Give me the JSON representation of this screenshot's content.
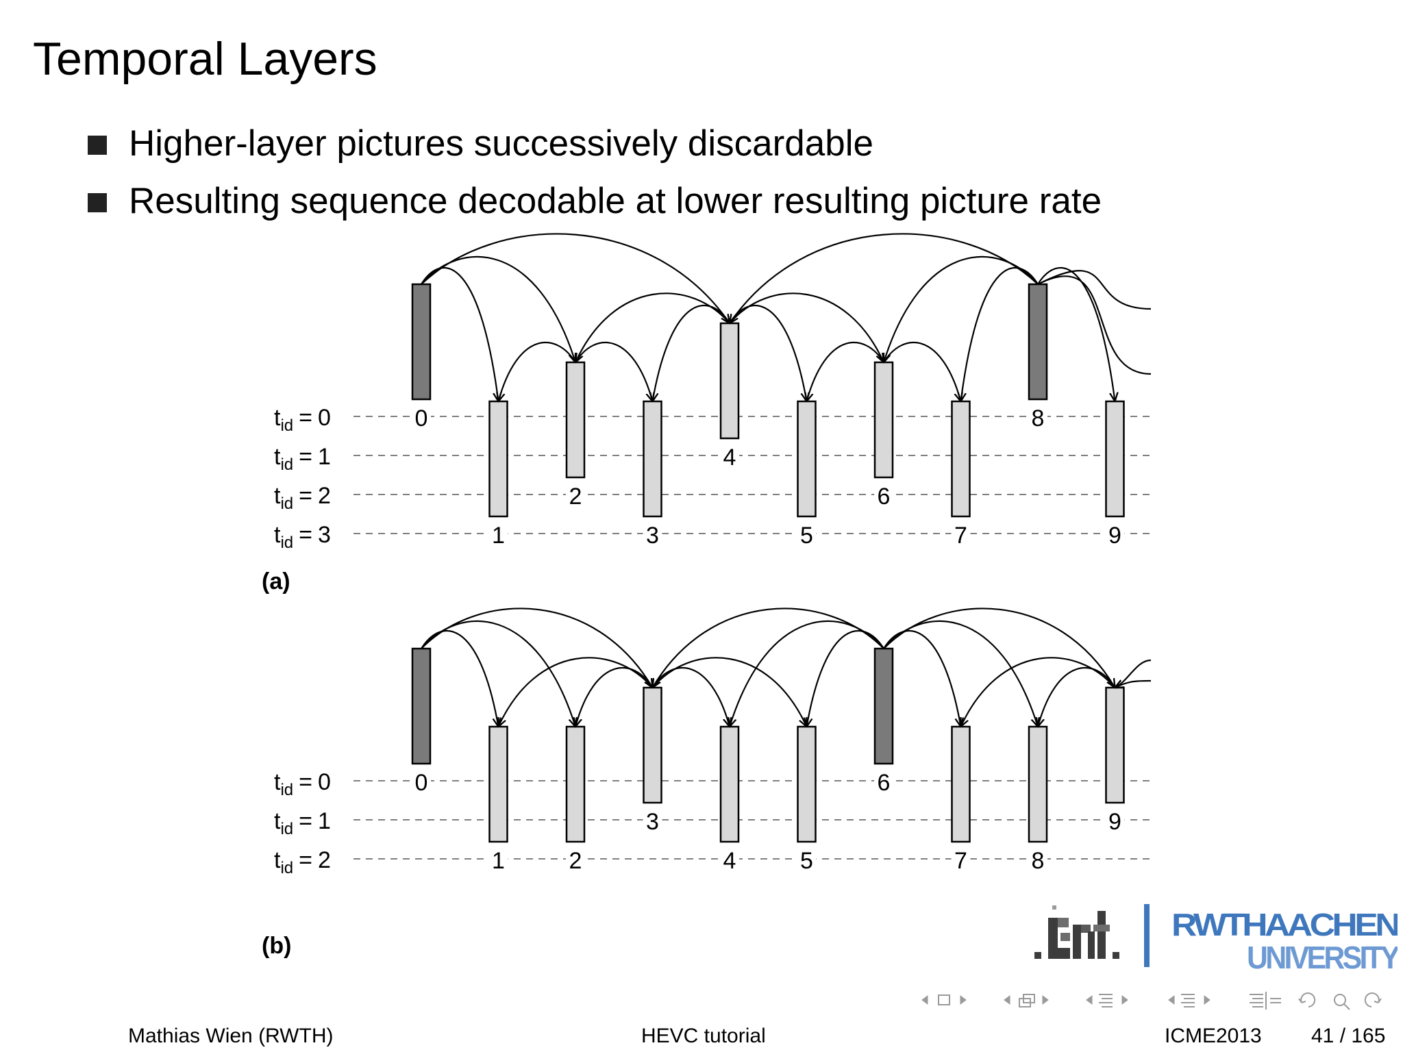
{
  "title": "Temporal Layers",
  "bullets": [
    "Higher-layer pictures successively discardable",
    "Resulting sequence decodable at lower resulting picture rate"
  ],
  "colors": {
    "intra": "#7a7a7a",
    "inter": "#d9d9d9",
    "stroke": "#000000",
    "logo_blue": "#3f77bd",
    "logo_dark": "#3c3c3c"
  },
  "diagrams": [
    {
      "label": "(a)",
      "layers": [
        0,
        1,
        2,
        3
      ],
      "pictures": [
        {
          "n": 0,
          "tid": 0,
          "type": "intra"
        },
        {
          "n": 1,
          "tid": 3,
          "type": "inter"
        },
        {
          "n": 2,
          "tid": 2,
          "type": "inter"
        },
        {
          "n": 3,
          "tid": 3,
          "type": "inter"
        },
        {
          "n": 4,
          "tid": 1,
          "type": "inter"
        },
        {
          "n": 5,
          "tid": 3,
          "type": "inter"
        },
        {
          "n": 6,
          "tid": 2,
          "type": "inter"
        },
        {
          "n": 7,
          "tid": 3,
          "type": "inter"
        },
        {
          "n": 8,
          "tid": 0,
          "type": "intra"
        },
        {
          "n": 9,
          "tid": 3,
          "type": "inter"
        }
      ],
      "references": [
        [
          0,
          4
        ],
        [
          0,
          2
        ],
        [
          0,
          1
        ],
        [
          4,
          2
        ],
        [
          4,
          6
        ],
        [
          2,
          1
        ],
        [
          2,
          3
        ],
        [
          4,
          3
        ],
        [
          4,
          5
        ],
        [
          6,
          5
        ],
        [
          6,
          7
        ],
        [
          8,
          4
        ],
        [
          8,
          6
        ],
        [
          8,
          7
        ],
        [
          8,
          9
        ],
        [
          8,
          "next"
        ],
        [
          8,
          "next2"
        ]
      ]
    },
    {
      "label": "(b)",
      "layers": [
        0,
        1,
        2
      ],
      "pictures": [
        {
          "n": 0,
          "tid": 0,
          "type": "intra"
        },
        {
          "n": 1,
          "tid": 2,
          "type": "inter"
        },
        {
          "n": 2,
          "tid": 2,
          "type": "inter"
        },
        {
          "n": 3,
          "tid": 1,
          "type": "inter"
        },
        {
          "n": 4,
          "tid": 2,
          "type": "inter"
        },
        {
          "n": 5,
          "tid": 2,
          "type": "inter"
        },
        {
          "n": 6,
          "tid": 0,
          "type": "intra"
        },
        {
          "n": 7,
          "tid": 2,
          "type": "inter"
        },
        {
          "n": 8,
          "tid": 2,
          "type": "inter"
        },
        {
          "n": 9,
          "tid": 1,
          "type": "inter"
        }
      ],
      "references": [
        [
          0,
          3
        ],
        [
          0,
          1
        ],
        [
          0,
          2
        ],
        [
          3,
          1
        ],
        [
          3,
          2
        ],
        [
          3,
          4
        ],
        [
          3,
          5
        ],
        [
          6,
          3
        ],
        [
          6,
          4
        ],
        [
          6,
          5
        ],
        [
          6,
          7
        ],
        [
          6,
          8
        ],
        [
          6,
          9
        ],
        [
          9,
          7
        ],
        [
          9,
          8
        ],
        [
          "next",
          9
        ],
        [
          "next2",
          9
        ]
      ]
    }
  ],
  "tid_label_prefix": "t",
  "tid_label_sub": "id",
  "tid_label_eq": "=",
  "logos": {
    "left": ".int.",
    "right_top": "RWTHAACHEN",
    "right_bottom": "UNIVERSITY"
  },
  "footer": {
    "author": "Mathias Wien  (RWTH)",
    "center": "HEVC tutorial",
    "conference": "ICME2013",
    "page": "41 / 165"
  }
}
